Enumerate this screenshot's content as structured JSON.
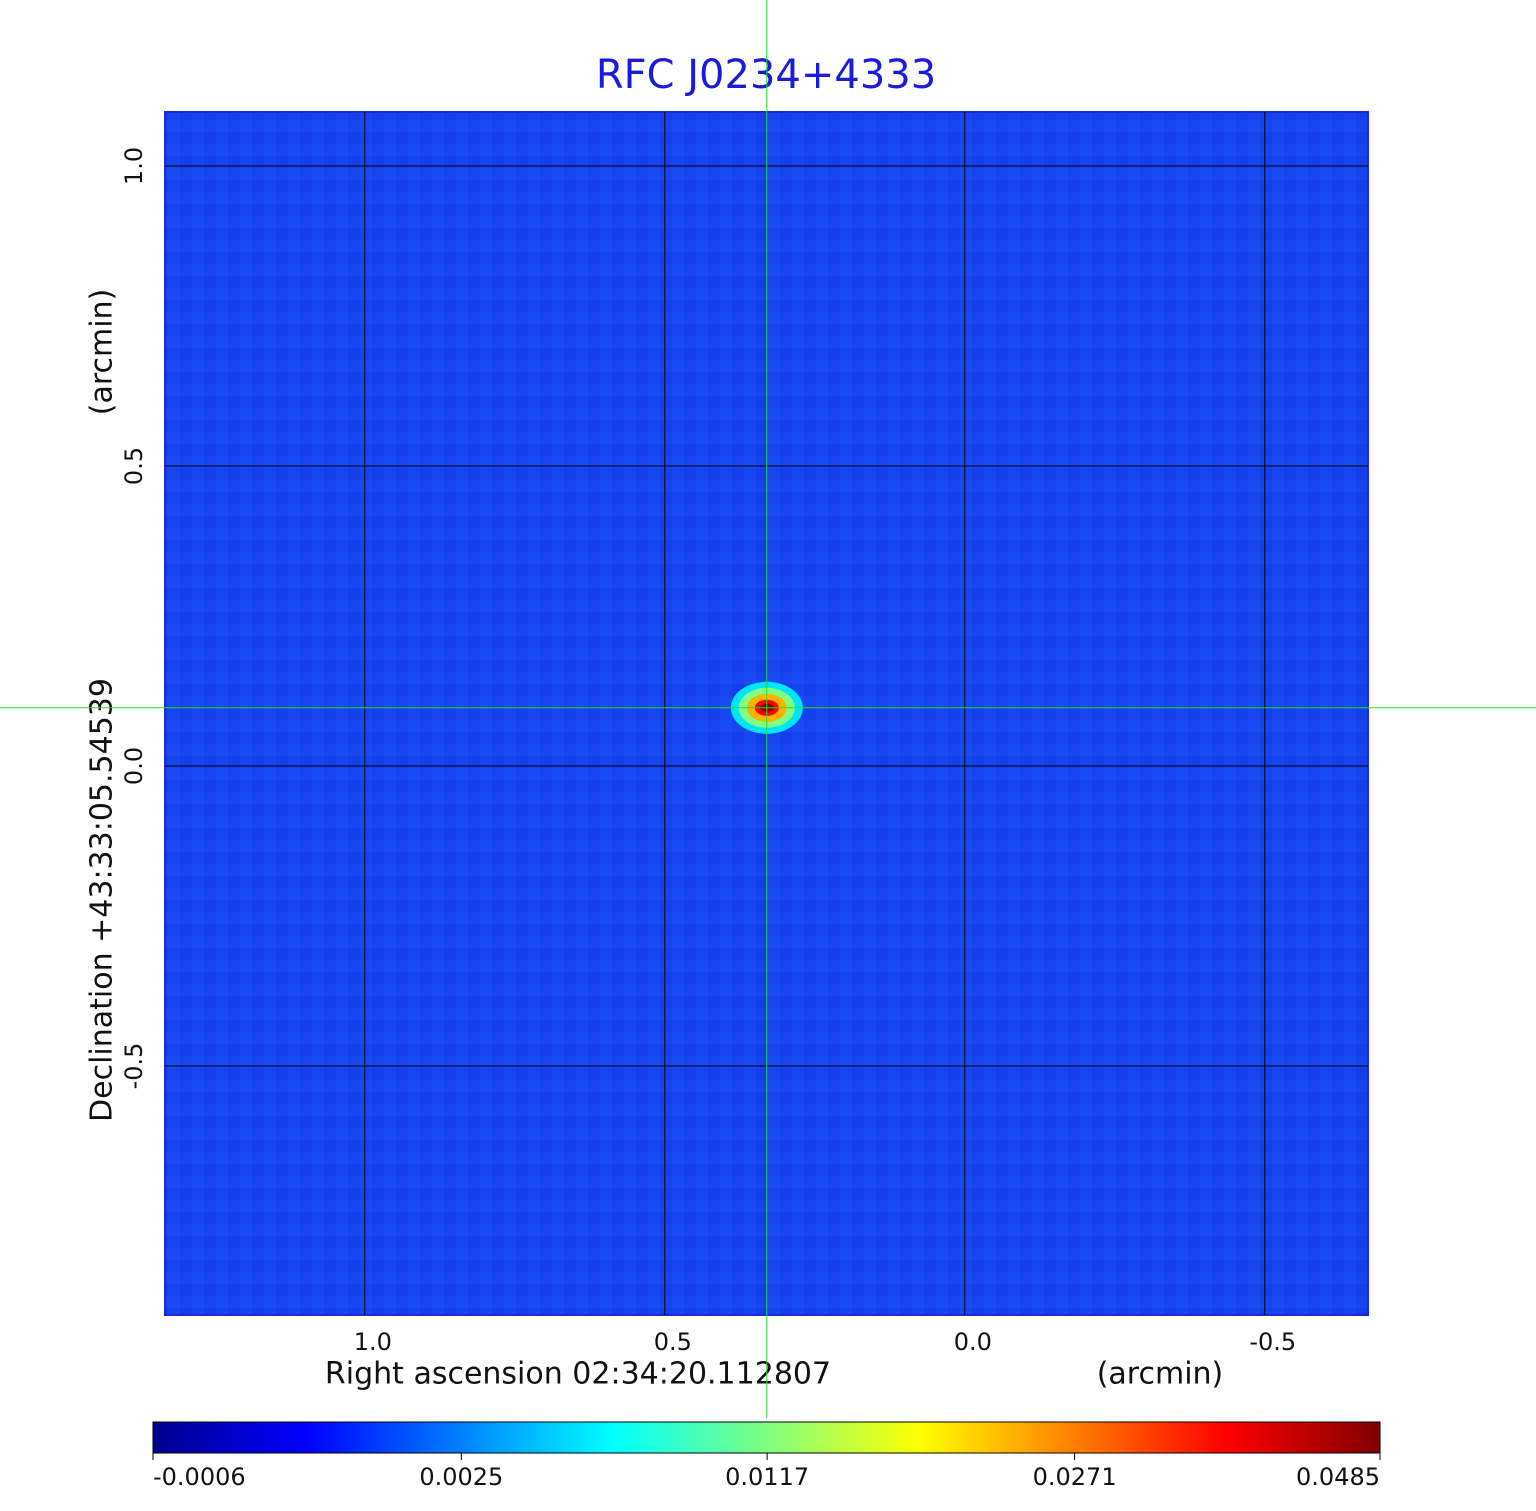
{
  "chart_data": {
    "type": "image",
    "title": "RFC J0234+4333",
    "x_label": "Right ascension  02:34:20.112807",
    "x_unit": "(arcmin)",
    "y_label": "Declination  +43:33:05.54539",
    "y_unit": "(arcmin)",
    "xlim": [
      1.333,
      -0.672
    ],
    "ylim": [
      -0.915,
      1.09
    ],
    "xticks": [
      {
        "value": 1,
        "label": "1.0"
      },
      {
        "value": 0.5,
        "label": "0.5"
      },
      {
        "value": 0,
        "label": "0.0"
      },
      {
        "value": -0.5,
        "label": "-0.5"
      }
    ],
    "yticks": [
      {
        "value": 1,
        "label": "1.0"
      },
      {
        "value": 0.5,
        "label": "0.5"
      },
      {
        "value": 0,
        "label": "0.0"
      },
      {
        "value": -0.5,
        "label": "-0.5"
      }
    ],
    "grid": true,
    "colormap": "jet",
    "colorbar_scale": "sqrt",
    "colorbar_lim": [
      -0.0006,
      0.0485
    ],
    "colorbar_ticks": [
      -0.0006,
      0.0025,
      0.0117,
      0.0271,
      0.0485
    ],
    "source": {
      "x": 0.33,
      "y": 0.097,
      "peak": 0.0485
    },
    "crosshair_color": "#22dd22",
    "title_color": "#1a1adc"
  }
}
